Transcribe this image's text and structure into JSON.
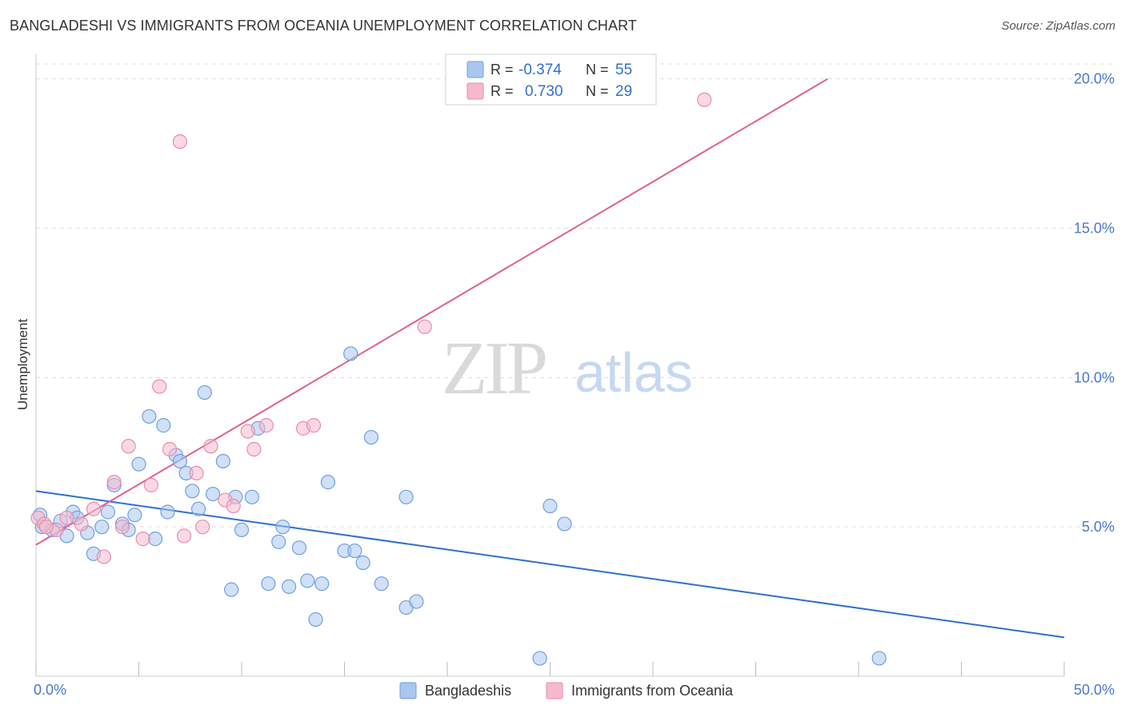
{
  "header": {
    "title": "BANGLADESHI VS IMMIGRANTS FROM OCEANIA UNEMPLOYMENT CORRELATION CHART",
    "source": "Source: ZipAtlas.com"
  },
  "watermark": {
    "zip": "ZIP",
    "atlas": "atlas"
  },
  "legend_top": {
    "rows": [
      {
        "r_label": "R =",
        "r_value": "-0.374",
        "n_label": "N =",
        "n_value": "55"
      },
      {
        "r_label": "R =",
        "r_value": "0.730",
        "n_label": "N =",
        "n_value": "29"
      }
    ]
  },
  "colors": {
    "blue_fill": "#a9c6ef",
    "blue_stroke": "#6f9fe0",
    "blue_line": "#2d6fd2",
    "pink_fill": "#f6b9cc",
    "pink_stroke": "#ec8aab",
    "pink_line": "#e0608c",
    "grid": "#dddddd",
    "axis": "#cccccc",
    "tick_text": "#4a78c8"
  },
  "chart_data": {
    "type": "scatter",
    "title": "BANGLADESHI VS IMMIGRANTS FROM OCEANIA UNEMPLOYMENT CORRELATION CHART",
    "xlabel": "",
    "ylabel": "Unemployment",
    "xlim": [
      0,
      50
    ],
    "ylim": [
      0,
      20.5
    ],
    "x_tick_labels": [
      "0.0%",
      "50.0%"
    ],
    "y_ticks": [
      5,
      10,
      15,
      20
    ],
    "y_tick_labels": [
      "5.0%",
      "10.0%",
      "15.0%",
      "20.0%"
    ],
    "grid": true,
    "legend_position": "bottom-center",
    "series": [
      {
        "name": "Bangladeshis",
        "color": "blue",
        "r": -0.374,
        "n": 55,
        "trend": {
          "x": [
            0,
            50
          ],
          "y": [
            6.2,
            1.3
          ]
        },
        "points": [
          [
            0.2,
            5.4
          ],
          [
            0.3,
            5.0
          ],
          [
            0.8,
            4.9
          ],
          [
            1.2,
            5.2
          ],
          [
            1.5,
            4.7
          ],
          [
            1.8,
            5.5
          ],
          [
            2.0,
            5.3
          ],
          [
            2.5,
            4.8
          ],
          [
            2.8,
            4.1
          ],
          [
            3.2,
            5.0
          ],
          [
            3.5,
            5.5
          ],
          [
            3.8,
            6.4
          ],
          [
            4.2,
            5.1
          ],
          [
            4.5,
            4.9
          ],
          [
            4.8,
            5.4
          ],
          [
            5.0,
            7.1
          ],
          [
            5.5,
            8.7
          ],
          [
            5.8,
            4.6
          ],
          [
            6.2,
            8.4
          ],
          [
            6.4,
            5.5
          ],
          [
            6.8,
            7.4
          ],
          [
            7.0,
            7.2
          ],
          [
            7.3,
            6.8
          ],
          [
            7.6,
            6.2
          ],
          [
            7.9,
            5.6
          ],
          [
            8.2,
            9.5
          ],
          [
            8.6,
            6.1
          ],
          [
            9.1,
            7.2
          ],
          [
            9.5,
            2.9
          ],
          [
            9.7,
            6.0
          ],
          [
            10.0,
            4.9
          ],
          [
            10.5,
            6.0
          ],
          [
            10.8,
            8.3
          ],
          [
            11.3,
            3.1
          ],
          [
            11.8,
            4.5
          ],
          [
            12.0,
            5.0
          ],
          [
            12.3,
            3.0
          ],
          [
            12.8,
            4.3
          ],
          [
            13.2,
            3.2
          ],
          [
            13.6,
            1.9
          ],
          [
            13.9,
            3.1
          ],
          [
            14.2,
            6.5
          ],
          [
            15.0,
            4.2
          ],
          [
            15.3,
            10.8
          ],
          [
            15.5,
            4.2
          ],
          [
            15.9,
            3.8
          ],
          [
            16.3,
            8.0
          ],
          [
            16.8,
            3.1
          ],
          [
            18.0,
            2.3
          ],
          [
            18.5,
            2.5
          ],
          [
            18.0,
            6.0
          ],
          [
            25.0,
            5.7
          ],
          [
            25.7,
            5.1
          ],
          [
            24.5,
            0.6
          ],
          [
            41.0,
            0.6
          ]
        ]
      },
      {
        "name": "Immigrants from Oceania",
        "color": "pink",
        "r": 0.73,
        "n": 29,
        "trend": {
          "x": [
            0,
            38.5
          ],
          "y": [
            4.4,
            20.0
          ]
        },
        "points": [
          [
            0.1,
            5.3
          ],
          [
            0.4,
            5.1
          ],
          [
            1.0,
            4.9
          ],
          [
            1.5,
            5.3
          ],
          [
            2.2,
            5.1
          ],
          [
            2.8,
            5.6
          ],
          [
            3.3,
            4.0
          ],
          [
            3.8,
            6.5
          ],
          [
            4.2,
            5.0
          ],
          [
            4.5,
            7.7
          ],
          [
            5.2,
            4.6
          ],
          [
            5.6,
            6.4
          ],
          [
            6.0,
            9.7
          ],
          [
            6.5,
            7.6
          ],
          [
            7.0,
            17.9
          ],
          [
            7.2,
            4.7
          ],
          [
            7.8,
            6.8
          ],
          [
            8.1,
            5.0
          ],
          [
            8.5,
            7.7
          ],
          [
            9.2,
            5.9
          ],
          [
            9.6,
            5.7
          ],
          [
            10.3,
            8.2
          ],
          [
            10.6,
            7.6
          ],
          [
            11.2,
            8.4
          ],
          [
            13.0,
            8.3
          ],
          [
            13.5,
            8.4
          ],
          [
            18.9,
            11.7
          ],
          [
            32.5,
            19.3
          ],
          [
            0.5,
            5.0
          ]
        ]
      }
    ]
  }
}
